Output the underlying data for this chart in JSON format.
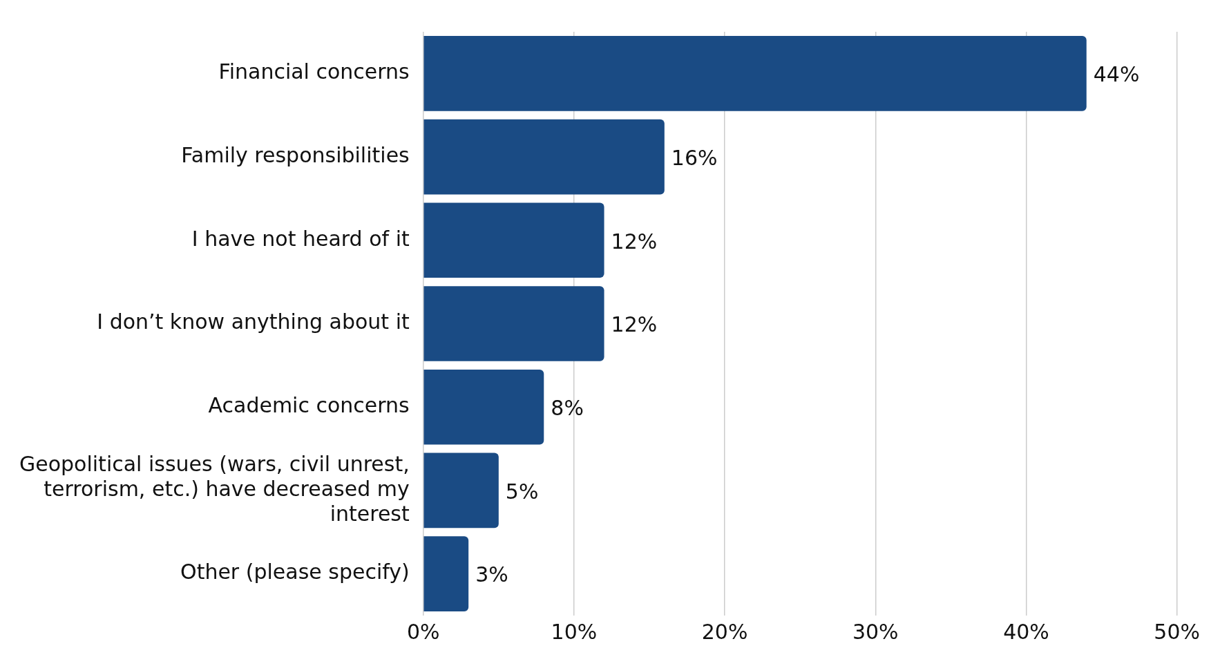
{
  "chart_data": {
    "type": "bar",
    "orientation": "horizontal",
    "categories": [
      "Financial concerns",
      "Family responsibilities",
      "I have not heard of it",
      "I don’t know anything about it",
      "Academic concerns",
      "Geopolitical issues (wars, civil unrest, terrorism, etc.) have decreased my interest",
      "Other (please specify)"
    ],
    "values": [
      44,
      16,
      12,
      12,
      8,
      5,
      3
    ],
    "value_labels": [
      "44%",
      "16%",
      "12%",
      "12%",
      "8%",
      "5%",
      "3%"
    ],
    "color": "#1a4b84",
    "xlim": [
      0,
      50
    ],
    "xticks": [
      {
        "value": 0,
        "label": "0%"
      },
      {
        "value": 10,
        "label": "10%"
      },
      {
        "value": 20,
        "label": "20%"
      },
      {
        "value": 30,
        "label": "30%"
      },
      {
        "value": 40,
        "label": "40%"
      },
      {
        "value": 50,
        "label": "50%"
      }
    ],
    "grid": "x",
    "legend": false
  }
}
